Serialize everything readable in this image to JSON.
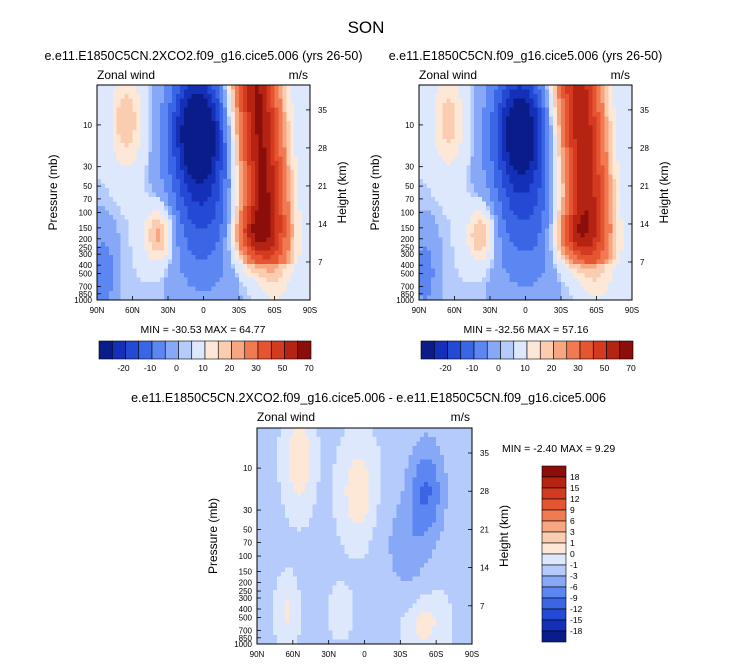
{
  "figure": {
    "title": "SON"
  },
  "chart_data": [
    {
      "type": "heatmap",
      "title": "e.e11.E1850C5CN.2XCO2.f09_g16.cice5.006 (yrs 26-50)",
      "variable_label": "Zonal wind",
      "units_label": "m/s",
      "xlabel": "",
      "ylabel": "Pressure (mb)",
      "ylabel_right": "Height (km)",
      "x_ticks": [
        "90N",
        "60N",
        "30N",
        "0",
        "30S",
        "60S",
        "90S"
      ],
      "y_ticks": [
        "10",
        "30",
        "50",
        "70",
        "100",
        "150",
        "200",
        "250",
        "300",
        "400",
        "500",
        "700",
        "850",
        "1000"
      ],
      "y_ticks_right": [
        "35",
        "28",
        "21",
        "14",
        "7"
      ],
      "y_scale": "log",
      "y_range_mb": [
        1000,
        3.5
      ],
      "x_range_deg": [
        90,
        -90
      ],
      "stats": "MIN = -30.53   MAX = 64.77",
      "min": -30.53,
      "max": 64.77,
      "colorbar": {
        "orientation": "horizontal",
        "tick_labels": [
          "-20",
          "-10",
          "0",
          "10",
          "20",
          "30",
          "50",
          "70"
        ],
        "colors": [
          "#0a1c8a",
          "#1530b8",
          "#2449d4",
          "#3a66e6",
          "#5c86f2",
          "#87a8f7",
          "#b4cbfb",
          "#dde8fd",
          "#fde8d8",
          "#fbcdb0",
          "#f7a682",
          "#f17a53",
          "#e65532",
          "#d43a1f",
          "#b52312",
          "#8c0e0b"
        ]
      }
    },
    {
      "type": "heatmap",
      "title": "e.e11.E1850C5CN.f09_g16.cice5.006 (yrs 26-50)",
      "variable_label": "Zonal wind",
      "units_label": "m/s",
      "xlabel": "",
      "ylabel": "Pressure (mb)",
      "ylabel_right": "Height (km)",
      "x_ticks": [
        "90N",
        "60N",
        "30N",
        "0",
        "30S",
        "60S",
        "90S"
      ],
      "y_ticks": [
        "10",
        "30",
        "50",
        "70",
        "100",
        "150",
        "200",
        "250",
        "300",
        "400",
        "500",
        "700",
        "850",
        "1000"
      ],
      "y_ticks_right": [
        "35",
        "28",
        "21",
        "14",
        "7"
      ],
      "y_scale": "log",
      "y_range_mb": [
        1000,
        3.5
      ],
      "x_range_deg": [
        90,
        -90
      ],
      "stats": "MIN = -32.56   MAX = 57.16",
      "min": -32.56,
      "max": 57.16,
      "colorbar": {
        "orientation": "horizontal",
        "tick_labels": [
          "-20",
          "-10",
          "0",
          "10",
          "20",
          "30",
          "50",
          "70"
        ],
        "colors": [
          "#0a1c8a",
          "#1530b8",
          "#2449d4",
          "#3a66e6",
          "#5c86f2",
          "#87a8f7",
          "#b4cbfb",
          "#dde8fd",
          "#fde8d8",
          "#fbcdb0",
          "#f7a682",
          "#f17a53",
          "#e65532",
          "#d43a1f",
          "#b52312",
          "#8c0e0b"
        ]
      }
    },
    {
      "type": "heatmap",
      "title": "e.e11.E1850C5CN.2XCO2.f09_g16.cice5.006 - e.e11.E1850C5CN.f09_g16.cice5.006",
      "variable_label": "Zonal wind",
      "units_label": "m/s",
      "xlabel": "",
      "ylabel": "Pressure (mb)",
      "ylabel_right": "Height (km)",
      "x_ticks": [
        "90N",
        "60N",
        "30N",
        "0",
        "30S",
        "60S",
        "90S"
      ],
      "y_ticks": [
        "10",
        "30",
        "50",
        "70",
        "100",
        "150",
        "200",
        "250",
        "300",
        "400",
        "500",
        "700",
        "850",
        "1000"
      ],
      "y_ticks_right": [
        "35",
        "28",
        "21",
        "14",
        "7"
      ],
      "y_scale": "log",
      "y_range_mb": [
        1000,
        3.5
      ],
      "x_range_deg": [
        90,
        -90
      ],
      "stats": "MIN = -2.40   MAX =  9.29",
      "min": -2.4,
      "max": 9.29,
      "colorbar": {
        "orientation": "vertical",
        "tick_labels": [
          "18",
          "15",
          "12",
          "9",
          "6",
          "3",
          "1",
          "0",
          "-1",
          "-3",
          "-6",
          "-9",
          "-12",
          "-15",
          "-18"
        ],
        "colors": [
          "#8c0e0b",
          "#b52312",
          "#d43a1f",
          "#e65532",
          "#f17a53",
          "#f7a682",
          "#fbcdb0",
          "#fde8d8",
          "#dde8fd",
          "#b4cbfb",
          "#87a8f7",
          "#5c86f2",
          "#3a66e6",
          "#2449d4",
          "#1530b8",
          "#0a1c8a"
        ]
      }
    }
  ]
}
